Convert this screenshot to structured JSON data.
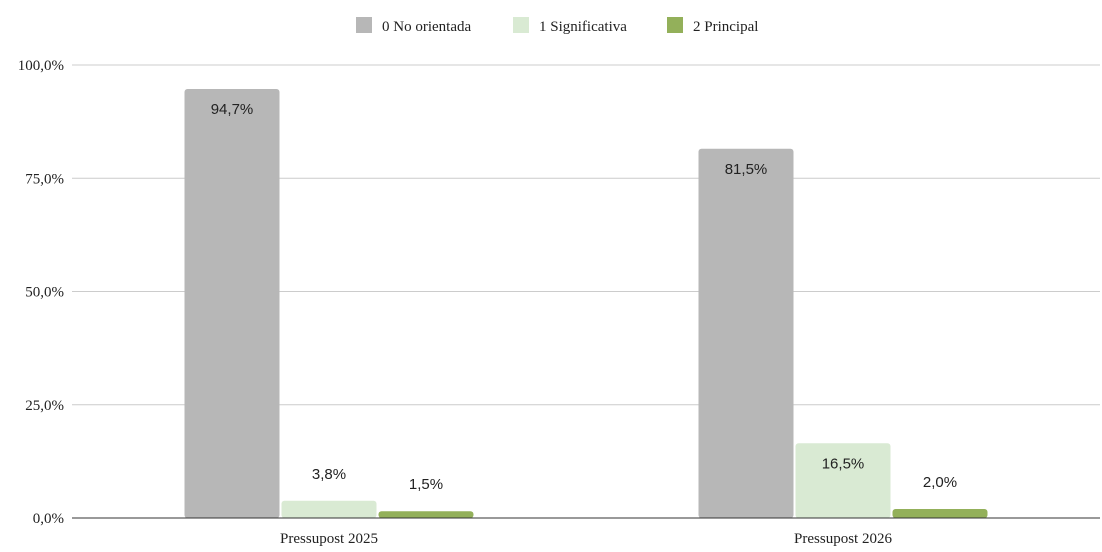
{
  "chart_data": {
    "type": "bar",
    "categories": [
      "Pressupost 2025",
      "Pressupost 2026"
    ],
    "series": [
      {
        "name": "0 No orientada",
        "values": [
          94.7,
          81.5
        ],
        "labels": [
          "94,7%",
          "81,5%"
        ],
        "color": "#b7b7b7"
      },
      {
        "name": "1 Significativa",
        "values": [
          3.8,
          16.5
        ],
        "labels": [
          "3,8%",
          "16,5%"
        ],
        "color": "#d9ead3"
      },
      {
        "name": "2 Principal",
        "values": [
          1.5,
          2.0
        ],
        "labels": [
          "1,5%",
          "2,0%"
        ],
        "color": "#93b05a"
      }
    ],
    "yticks": [
      {
        "value": 0,
        "label": "0,0%"
      },
      {
        "value": 25,
        "label": "25,0%"
      },
      {
        "value": 50,
        "label": "50,0%"
      },
      {
        "value": 75,
        "label": "75,0%"
      },
      {
        "value": 100,
        "label": "100,0%"
      }
    ],
    "ylim": [
      0,
      100
    ],
    "grid": true,
    "legend_position": "top-center",
    "title": "",
    "xlabel": "",
    "ylabel": ""
  }
}
